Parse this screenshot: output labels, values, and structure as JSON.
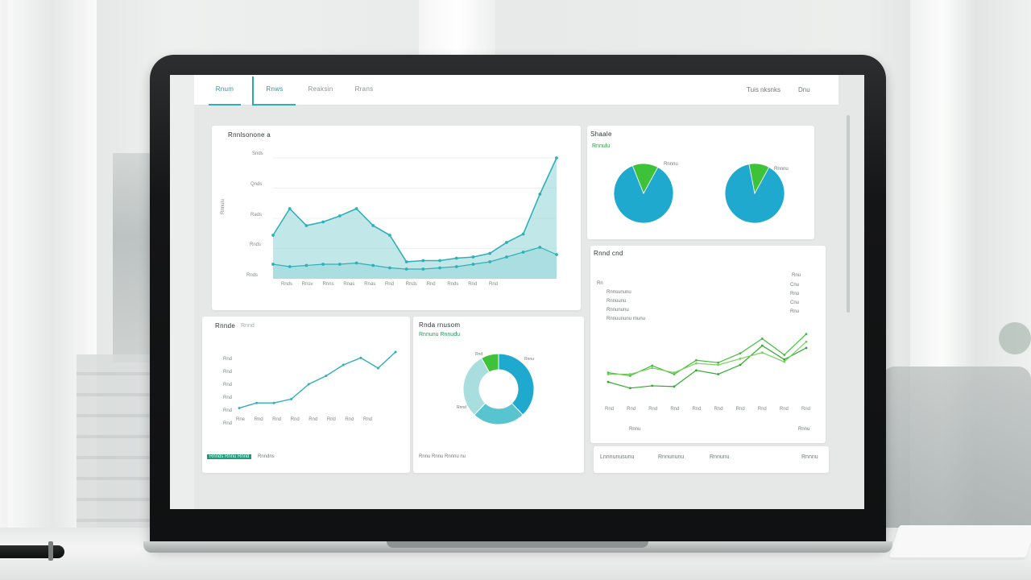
{
  "nav": {
    "tabs": [
      "Rnum",
      "Rnws",
      "Reaksin",
      "Rrans"
    ],
    "right_items": [
      "Tuis  nksnks",
      "Dnu"
    ]
  },
  "colors": {
    "teal": "#2fb0b8",
    "teal_fill": "#8fd3d6",
    "green": "#3fbf3a",
    "pie_blue": "#20a9cf",
    "pie_green": "#3dc23a",
    "donut_light": "#a8dedd"
  },
  "main_chart": {
    "title": "Rnnlsonone a",
    "y_axis_label": "Rnnulu",
    "y_ticks": [
      "Snds",
      "Qnds",
      "Rads",
      "Rnds",
      "Rnds"
    ],
    "x_ticks": [
      "Rnds",
      "Rnsv",
      "Rnns",
      "Rnas",
      "Rnas",
      "Rnd",
      "Rnds",
      "Rnd",
      "Rnds",
      "Rnd",
      "Rnd"
    ]
  },
  "chart_data": [
    {
      "type": "area",
      "title": "Rnnlsonone a",
      "x": [
        1,
        2,
        3,
        4,
        5,
        6,
        7,
        8,
        9,
        10,
        11,
        12,
        13,
        14,
        15,
        16,
        17,
        18
      ],
      "series": [
        {
          "values": [
            36,
            58,
            44,
            47,
            52,
            58,
            44,
            36,
            14,
            15,
            15,
            17,
            18,
            21,
            30,
            37,
            70,
            100
          ]
        },
        {
          "values": [
            12,
            10,
            11,
            12,
            12,
            13,
            11,
            9,
            8,
            8,
            9,
            10,
            12,
            14,
            18,
            22,
            26,
            20
          ]
        }
      ],
      "ylim": [
        0,
        100
      ]
    },
    {
      "type": "pie",
      "title": "Shaale",
      "values": [
        86,
        14
      ]
    },
    {
      "type": "pie",
      "values": [
        89,
        11
      ]
    },
    {
      "type": "line",
      "title": "Rnnde",
      "x": [
        1,
        2,
        3,
        4,
        5,
        6,
        7,
        8,
        9,
        10
      ],
      "values": [
        8,
        16,
        16,
        22,
        45,
        58,
        75,
        86,
        70,
        95
      ],
      "ylim": [
        0,
        100
      ]
    },
    {
      "type": "pie",
      "title": "Rnda  rnusom",
      "values": [
        38,
        24,
        30,
        8
      ]
    },
    {
      "type": "line",
      "title": "Rnnd  cnd",
      "x": [
        1,
        2,
        3,
        4,
        5,
        6,
        7,
        8,
        9,
        10
      ],
      "series": [
        {
          "values": [
            40,
            36,
            49,
            38,
            56,
            53,
            65,
            84,
            63,
            90
          ]
        },
        {
          "values": [
            28,
            20,
            23,
            22,
            43,
            38,
            50,
            75,
            57,
            72
          ]
        },
        {
          "values": [
            38,
            38,
            46,
            40,
            52,
            50,
            58,
            66,
            54,
            80
          ]
        }
      ],
      "ylim": [
        0,
        100
      ]
    }
  ],
  "pies": {
    "title": "Shaale",
    "subtitle": "Rnnulu",
    "label_1": "Rnnnu",
    "label_2": "Rnnnu"
  },
  "trend_chart": {
    "title": "Rnnde",
    "title_extra": "Rnnd",
    "x_ticks": [
      "Rne",
      "Rnd",
      "Rnd",
      "Rnd",
      "Rnd",
      "Rnd",
      "Rnd",
      "Rnd"
    ],
    "y_ticks": [
      "Rnd",
      "Rnd",
      "Rnd",
      "Rnd",
      "Rnd",
      "Rnd"
    ],
    "footer_active": "Rnnds  Rnnu Rnnd",
    "footer_label": "Rnndns"
  },
  "donut_chart": {
    "title": "Rnda  rnusom",
    "subtitle": "Rnnunu Rnnudu",
    "segment_labels": [
      "Rnd",
      "Rnnu",
      "Rnnd"
    ],
    "footer": "Rnnu Rnnu  Rnnnu nu"
  },
  "table_chart": {
    "title": "Rnnd  cnd",
    "header_left": "Rn",
    "header_right": "Rnu",
    "rows": [
      {
        "label": "Rnnsununu",
        "value": "Cnu"
      },
      {
        "label": "Rnnuunu",
        "value": "Rnu"
      },
      {
        "label": "Rnnununu",
        "value": "Cnu"
      },
      {
        "label": "Rnnuununu  rnunu",
        "value": "Rnu"
      }
    ],
    "x_ticks": [
      "Rnd",
      "Rnd",
      "Rnd",
      "Rnd",
      "Rnd",
      "Rnd",
      "Rnd",
      "Rnd",
      "Rnd",
      "Rnd"
    ],
    "footer_left": "Rnnu",
    "footer_right": "Rnnu"
  },
  "bottom_bar": {
    "items": [
      "Lnnnunusunu",
      "Rnnununu",
      "Rnnunu"
    ],
    "right": "Rnnnu"
  }
}
